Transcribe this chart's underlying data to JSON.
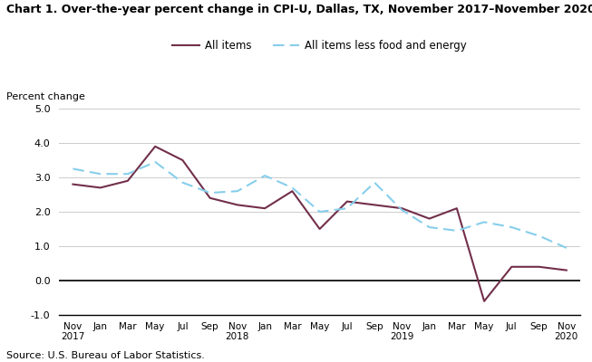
{
  "title": "Chart 1. Over-the-year percent change in CPI-U, Dallas, TX, November 2017–November 2020",
  "ylabel": "Percent change",
  "source": "Source: U.S. Bureau of Labor Statistics.",
  "ylim": [
    -1.0,
    5.0
  ],
  "yticks": [
    -1.0,
    0.0,
    1.0,
    2.0,
    3.0,
    4.0,
    5.0
  ],
  "x_labels": [
    "Nov\n2017",
    "Jan",
    "Mar",
    "May",
    "Jul",
    "Sep",
    "Nov\n2018",
    "Jan",
    "Mar",
    "May",
    "Jul",
    "Sep",
    "Nov\n2019",
    "Jan",
    "Mar",
    "May",
    "Jul",
    "Sep",
    "Nov\n2020"
  ],
  "all_items": [
    2.8,
    2.7,
    2.9,
    3.9,
    3.5,
    2.4,
    2.2,
    2.1,
    2.6,
    1.5,
    2.3,
    2.2,
    2.1,
    1.8,
    2.1,
    -0.6,
    0.4,
    0.4,
    0.3
  ],
  "all_items_less": [
    3.25,
    3.1,
    3.1,
    3.45,
    2.85,
    2.55,
    2.6,
    3.05,
    2.7,
    2.0,
    2.1,
    2.85,
    2.05,
    1.55,
    1.45,
    1.7,
    1.55,
    1.3,
    0.95
  ],
  "all_items_color": "#722F4A",
  "all_items_less_color": "#87CEEB",
  "legend_all_items": "All items",
  "legend_all_items_less": "All items less food and energy",
  "background_color": "#ffffff",
  "grid_color": "#cccccc"
}
